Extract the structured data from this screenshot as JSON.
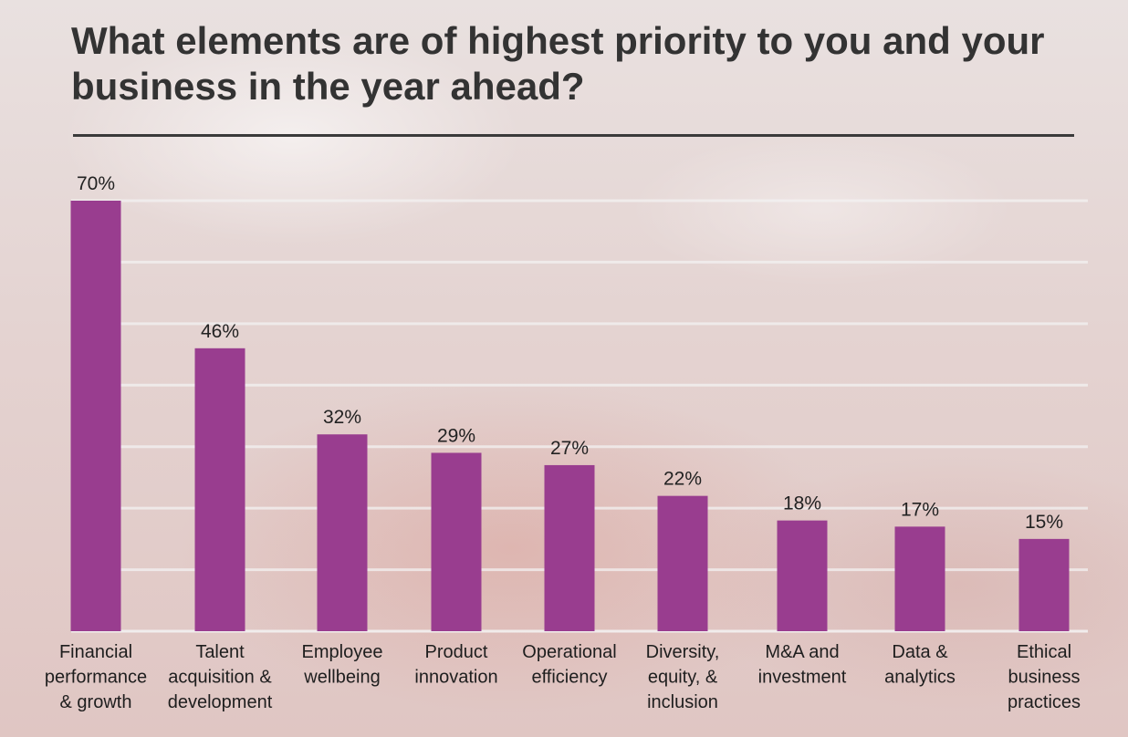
{
  "title": "What elements are of highest priority to you and your business in the year ahead?",
  "colors": {
    "bar": "#993d8f",
    "title": "#333333",
    "grid": "#f3f1f1"
  },
  "chart_data": {
    "type": "bar",
    "title": "What elements are of highest priority to you and your business in the year ahead?",
    "categories": [
      "Financial performance & growth",
      "Talent acquisition & development",
      "Employee wellbeing",
      "Product innovation",
      "Operational efficiency",
      "Diversity, equity, & inclusion",
      "M&A and investment",
      "Data & analytics",
      "Ethical business practices"
    ],
    "category_label_lines": [
      [
        "Financial",
        "performance",
        "& growth"
      ],
      [
        "Talent",
        "acquisition &",
        "development"
      ],
      [
        "Employee",
        "wellbeing"
      ],
      [
        "Product",
        "innovation"
      ],
      [
        "Operational",
        "efficiency"
      ],
      [
        "Diversity,",
        "equity, &",
        "inclusion"
      ],
      [
        "M&A and",
        "investment"
      ],
      [
        "Data &",
        "analytics"
      ],
      [
        "Ethical",
        "business",
        "practices"
      ]
    ],
    "values": [
      70,
      46,
      32,
      29,
      27,
      22,
      18,
      17,
      15
    ],
    "data_labels": [
      "70%",
      "46%",
      "32%",
      "29%",
      "27%",
      "22%",
      "18%",
      "17%",
      "15%"
    ],
    "unit": "%",
    "xlabel": "",
    "ylabel": "",
    "ylim": [
      0,
      70
    ],
    "grid": true,
    "legend": "none"
  }
}
